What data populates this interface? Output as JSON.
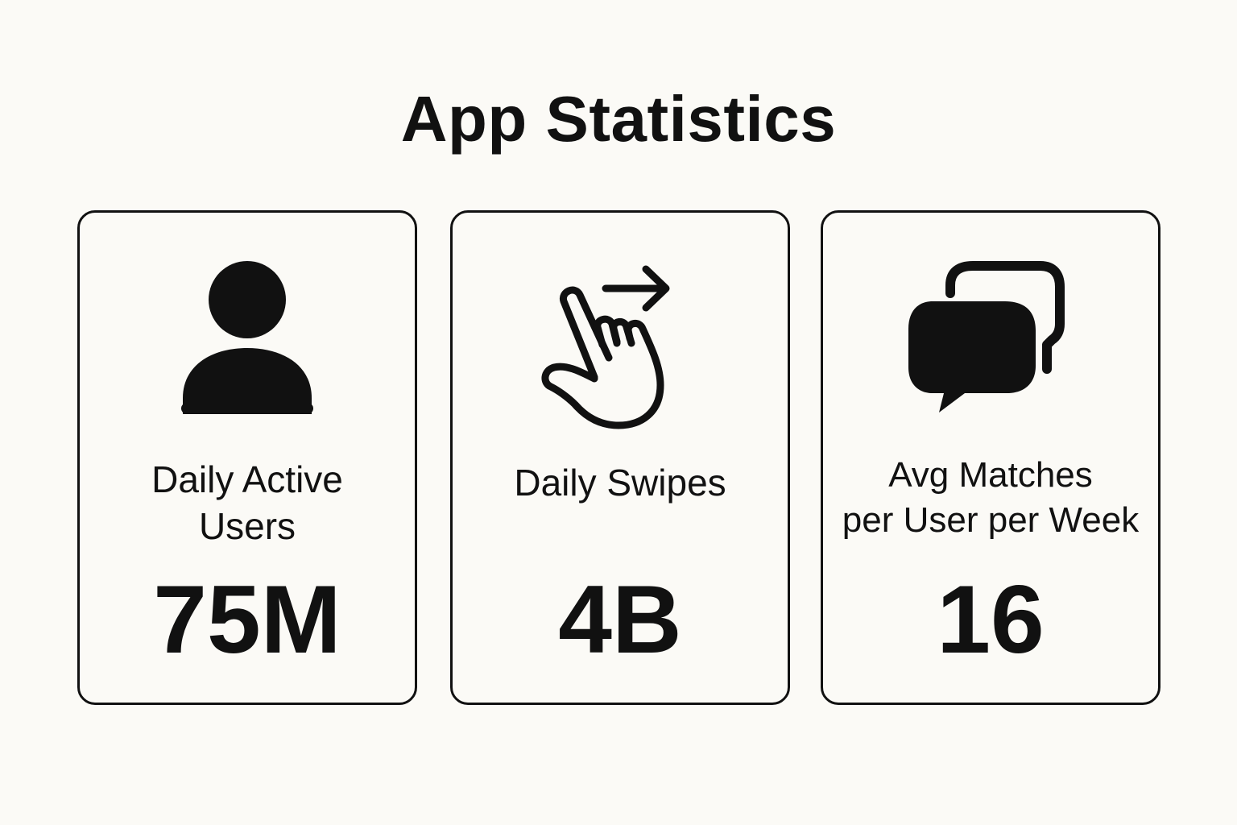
{
  "title": "App Statistics",
  "cards": [
    {
      "icon": "user-icon",
      "label_line1": "Daily Active",
      "label_line2": "Users",
      "value": "75M"
    },
    {
      "icon": "swipe-hand-icon",
      "label_line1": "Daily Swipes",
      "label_line2": "",
      "value": "4B"
    },
    {
      "icon": "chat-bubbles-icon",
      "label_line1": "Avg Matches",
      "label_line2": "per User per Week",
      "value": "16"
    }
  ],
  "colors": {
    "background": "#fbfaf6",
    "foreground": "#111111"
  }
}
